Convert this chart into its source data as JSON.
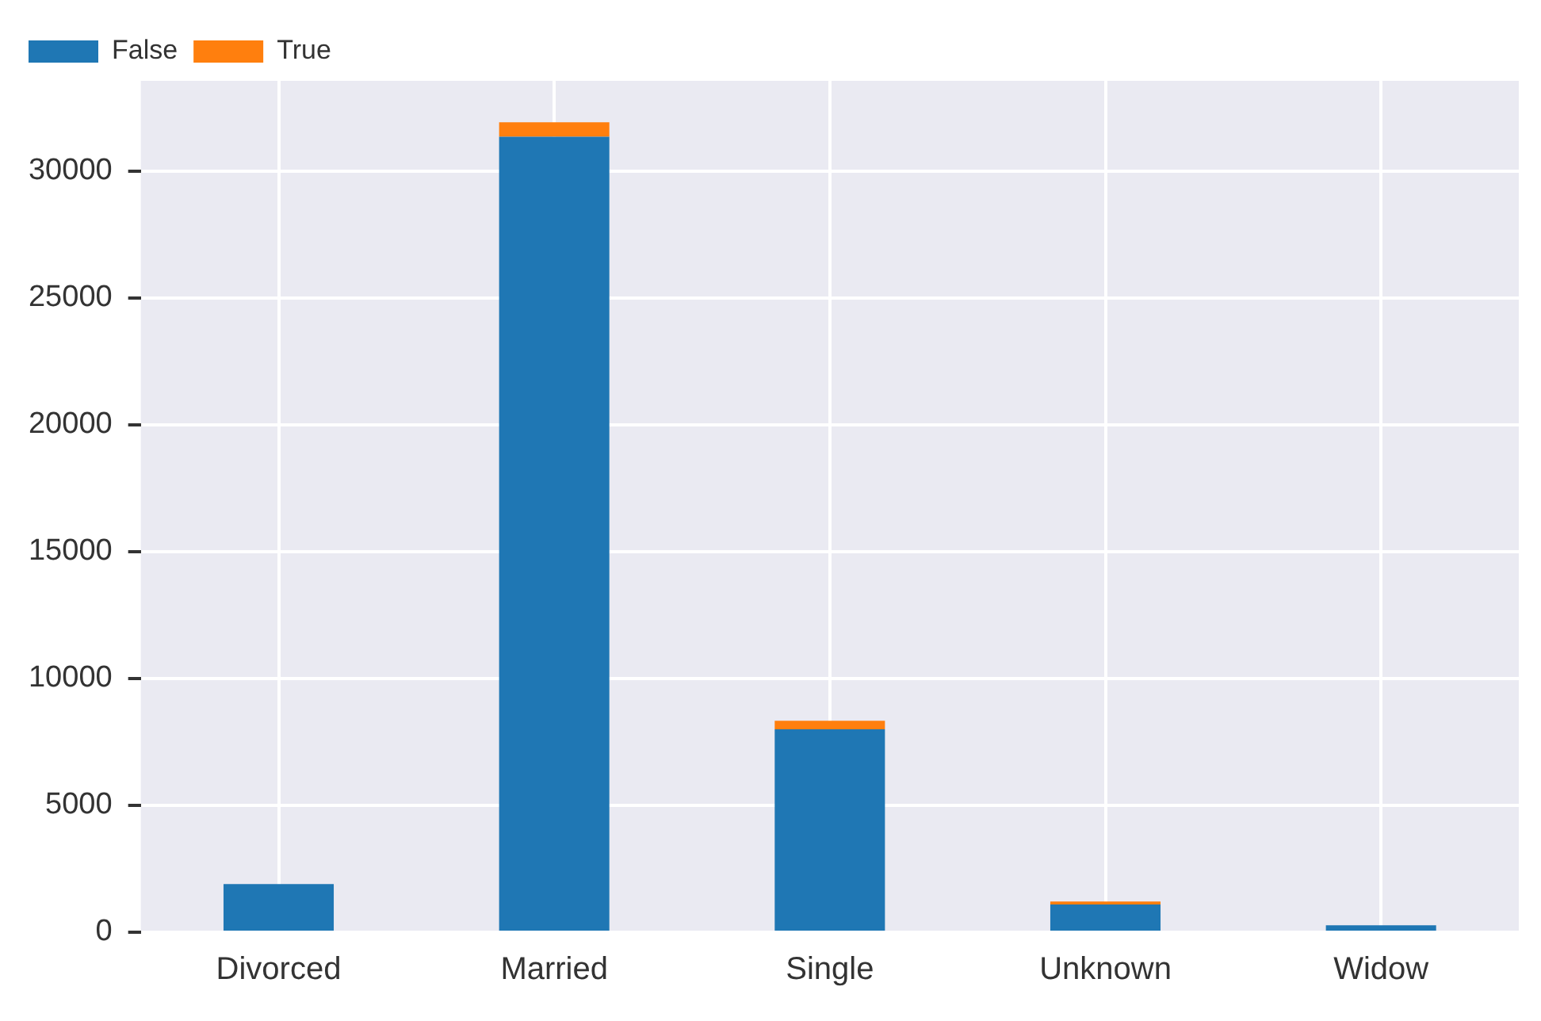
{
  "chart_data": {
    "type": "bar",
    "stacked": true,
    "categories": [
      "Divorced",
      "Married",
      "Single",
      "Unknown",
      "Widow"
    ],
    "series": [
      {
        "name": "False",
        "color": "#1f77b4",
        "values": [
          1900,
          31350,
          8000,
          1090,
          270
        ]
      },
      {
        "name": "True",
        "color": "#ff7f0e",
        "values": [
          null,
          570,
          330,
          120,
          null
        ]
      }
    ],
    "ylim": [
      0,
      33550
    ],
    "yticks": [
      0,
      5000,
      10000,
      15000,
      20000,
      25000,
      30000
    ],
    "grid": true,
    "legend": "top left"
  }
}
